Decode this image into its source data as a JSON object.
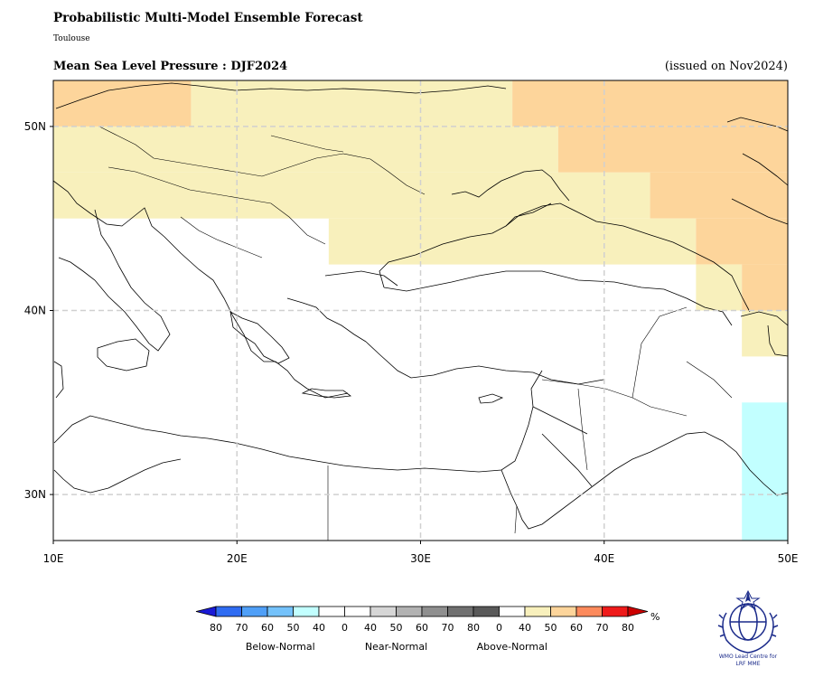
{
  "header": {
    "title": "Probabilistic Multi-Model Ensemble Forecast",
    "subtitle": "Toulouse",
    "variable_title": "Mean Sea Level Pressure : DJF2024",
    "issued": "(issued on Nov2024)"
  },
  "map": {
    "lon_range": [
      10,
      50
    ],
    "lat_range": [
      27.5,
      52.5
    ],
    "lon_ticks": [
      {
        "value": 10,
        "label": "10E"
      },
      {
        "value": 20,
        "label": "20E"
      },
      {
        "value": 30,
        "label": "30E"
      },
      {
        "value": 40,
        "label": "40E"
      },
      {
        "value": 50,
        "label": "50E"
      }
    ],
    "lat_ticks": [
      {
        "value": 30,
        "label": "30N"
      },
      {
        "value": 40,
        "label": "40N"
      },
      {
        "value": 50,
        "label": "50N"
      }
    ],
    "gridlines": true,
    "categories": {
      "above_40": "#f8f0bc",
      "above_50": "#fdd59b",
      "below_40": "#c2ffff"
    },
    "cells": [
      {
        "lon": [
          10,
          17.5
        ],
        "lat": [
          50,
          52.5
        ],
        "cat": "above_50"
      },
      {
        "lon": [
          17.5,
          35
        ],
        "lat": [
          50,
          52.5
        ],
        "cat": "above_40"
      },
      {
        "lon": [
          35,
          50
        ],
        "lat": [
          50,
          52.5
        ],
        "cat": "above_50"
      },
      {
        "lon": [
          10,
          37.5
        ],
        "lat": [
          47.5,
          50
        ],
        "cat": "above_40"
      },
      {
        "lon": [
          37.5,
          50
        ],
        "lat": [
          47.5,
          50
        ],
        "cat": "above_50"
      },
      {
        "lon": [
          10,
          42.5
        ],
        "lat": [
          45,
          47.5
        ],
        "cat": "above_40"
      },
      {
        "lon": [
          42.5,
          50
        ],
        "lat": [
          45,
          47.5
        ],
        "cat": "above_50"
      },
      {
        "lon": [
          25,
          45
        ],
        "lat": [
          42.5,
          45
        ],
        "cat": "above_40"
      },
      {
        "lon": [
          45,
          50
        ],
        "lat": [
          42.5,
          45
        ],
        "cat": "above_50"
      },
      {
        "lon": [
          45,
          47.5
        ],
        "lat": [
          40,
          42.5
        ],
        "cat": "above_40"
      },
      {
        "lon": [
          47.5,
          50
        ],
        "lat": [
          40,
          42.5
        ],
        "cat": "above_50"
      },
      {
        "lon": [
          47.5,
          50
        ],
        "lat": [
          37.5,
          40
        ],
        "cat": "above_40"
      },
      {
        "lon": [
          47.5,
          50
        ],
        "lat": [
          27.5,
          35
        ],
        "cat": "below_40"
      }
    ]
  },
  "legend": {
    "colors": [
      "#1a1ad6",
      "#2f6cf2",
      "#4f9ff7",
      "#74c2fb",
      "#c2ffff",
      "#ffffff",
      "#ffffff",
      "#d6d6d6",
      "#b2b2b2",
      "#8f8f8f",
      "#707070",
      "#595959",
      "#ffffff",
      "#f8f0bc",
      "#fdd59b",
      "#fd8a5c",
      "#ef1a1a",
      "#cc0000"
    ],
    "labels": [
      "80",
      "70",
      "60",
      "50",
      "40",
      "0",
      "40",
      "50",
      "60",
      "70",
      "80",
      "0",
      "40",
      "50",
      "60",
      "70",
      "80"
    ],
    "groups": [
      "Below-Normal",
      "Near-Normal",
      "Above-Normal"
    ],
    "unit": "%"
  },
  "logo": {
    "text_line1": "WMO Lead Centre for",
    "text_line2": "LRF MME",
    "color": "#1a2a8a"
  }
}
